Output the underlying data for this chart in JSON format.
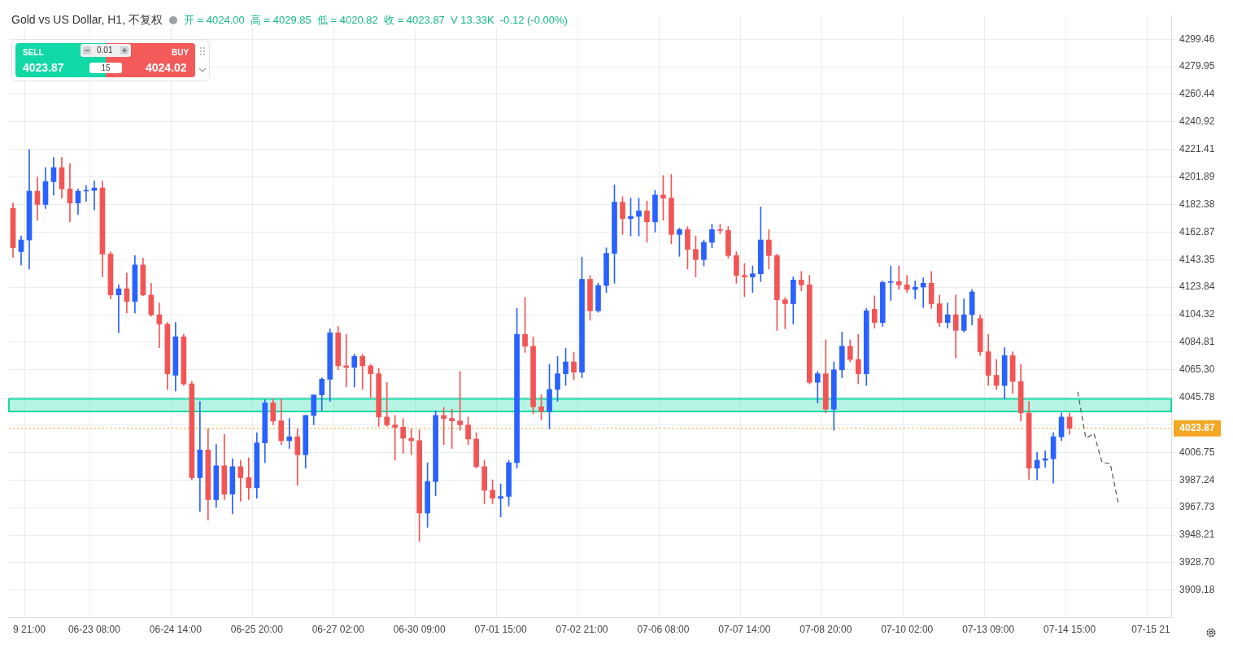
{
  "chart_data": {
    "type": "candlestick",
    "title": "Gold vs US Dollar, H1, 不复权",
    "subtitle": "开 = 4024.00  高 = 4029.85  低 = 4020.82  收 = 4023.87  V 13.33K  -0.12 (-0.00%)",
    "categories": [
      null,
      null,
      "9 21:00",
      null,
      null,
      null,
      null,
      null,
      null,
      null,
      "06-23 08:00",
      null,
      null,
      null,
      null,
      null,
      null,
      null,
      null,
      null,
      "06-24 14:00",
      null,
      null,
      null,
      null,
      null,
      null,
      null,
      null,
      null,
      "06-25 20:00",
      null,
      null,
      null,
      null,
      null,
      null,
      null,
      null,
      null,
      "06-27 02:00",
      null,
      null,
      null,
      null,
      null,
      null,
      null,
      null,
      null,
      "06-30 09:00",
      null,
      null,
      null,
      null,
      null,
      null,
      null,
      null,
      null,
      "07-01 15:00",
      null,
      null,
      null,
      null,
      null,
      null,
      null,
      null,
      null,
      "07-02 21:00",
      null,
      null,
      null,
      null,
      null,
      null,
      null,
      null,
      null,
      "07-06 08:00",
      null,
      null,
      null,
      null,
      null,
      null,
      null,
      null,
      null,
      "07-07 14:00",
      null,
      null,
      null,
      null,
      null,
      null,
      null,
      null,
      null,
      "07-08 20:00",
      null,
      null,
      null,
      null,
      null,
      null,
      null,
      null,
      null,
      "07-10 02:00",
      null,
      null,
      null,
      null,
      null,
      null,
      null,
      null,
      null,
      "07-13 09:00",
      null,
      null,
      null,
      null,
      null,
      null,
      null,
      null,
      null,
      "07-14 15:00",
      null,
      null,
      null,
      null,
      null,
      null,
      null,
      null,
      null,
      "07-15 21",
      null,
      null
    ],
    "ohlc": [
      [
        4179.6,
        4183.5,
        4145.0,
        4151.7
      ],
      [
        4149.0,
        4160.1,
        4139.5,
        4157.3
      ],
      [
        4157.3,
        4221.4,
        4136.7,
        4191.9
      ],
      [
        4191.9,
        4201.9,
        4171.2,
        4182.4
      ],
      [
        4182.4,
        4208.6,
        4179.6,
        4198.6
      ],
      [
        4198.6,
        4215.8,
        4189.1,
        4208.6
      ],
      [
        4208.6,
        4215.8,
        4186.9,
        4193.5
      ],
      [
        4193.5,
        4211.4,
        4170.1,
        4183.5
      ],
      [
        4183.5,
        4193.5,
        4175.2,
        4191.9
      ],
      [
        4191.9,
        4195.8,
        4184.6,
        4192.4
      ],
      [
        4192.4,
        4199.1,
        4178.5,
        4194.1
      ],
      [
        4194.1,
        4199.1,
        4131.1,
        4147.3
      ],
      [
        4147.3,
        4149.0,
        4115.5,
        4118.3
      ],
      [
        4118.3,
        4125.5,
        4091.5,
        4122.7
      ],
      [
        4122.7,
        4133.9,
        4105.5,
        4113.8
      ],
      [
        4113.8,
        4146.2,
        4105.5,
        4139.5
      ],
      [
        4139.5,
        4144.5,
        4117.7,
        4118.3
      ],
      [
        4118.3,
        4126.6,
        4103.2,
        4104.3
      ],
      [
        4104.3,
        4112.7,
        4080.9,
        4097.7
      ],
      [
        4097.7,
        4098.8,
        4051.4,
        4062.5
      ],
      [
        4061.4,
        4098.8,
        4050.3,
        4088.7
      ],
      [
        4088.7,
        4090.4,
        4054.2,
        4055.3
      ],
      [
        4055.3,
        4057.0,
        3987.3,
        3988.9
      ],
      [
        3988.9,
        4043.0,
        3965.0,
        4008.5
      ],
      [
        4008.5,
        4023.5,
        3958.8,
        3973.3
      ],
      [
        3973.3,
        4012.4,
        3967.8,
        3997.3
      ],
      [
        3997.3,
        4019.6,
        3973.3,
        3977.2
      ],
      [
        3977.2,
        4002.3,
        3963.3,
        3996.7
      ],
      [
        3996.7,
        4001.2,
        3972.2,
        3988.9
      ],
      [
        3988.9,
        4002.9,
        3973.3,
        3981.7
      ],
      [
        3981.7,
        4020.7,
        3974.4,
        4013.5
      ],
      [
        4013.5,
        4044.1,
        3999.5,
        4041.9
      ],
      [
        4041.9,
        4044.7,
        4026.3,
        4029.1
      ],
      [
        4029.1,
        4044.7,
        4012.4,
        4015.1
      ],
      [
        4015.1,
        4030.8,
        4009.6,
        4017.9
      ],
      [
        4017.9,
        4023.5,
        3983.4,
        4005.1
      ],
      [
        4005.1,
        4033.0,
        3995.6,
        4033.0
      ],
      [
        4033.0,
        4047.5,
        4026.3,
        4047.5
      ],
      [
        4047.5,
        4059.7,
        4036.3,
        4058.6
      ],
      [
        4058.6,
        4094.3,
        4043.0,
        4091.5
      ],
      [
        4091.5,
        4096.0,
        4065.3,
        4068.1
      ],
      [
        4068.1,
        4090.4,
        4053.1,
        4067.0
      ],
      [
        4067.0,
        4076.5,
        4053.1,
        4074.8
      ],
      [
        4074.8,
        4076.5,
        4051.4,
        4068.1
      ],
      [
        4068.1,
        4069.2,
        4045.8,
        4062.5
      ],
      [
        4062.5,
        4066.4,
        4025.2,
        4031.9
      ],
      [
        4031.9,
        4056.4,
        4025.2,
        4026.3
      ],
      [
        4026.3,
        4033.0,
        4001.2,
        4024.6
      ],
      [
        4024.6,
        4030.8,
        4006.2,
        4016.8
      ],
      [
        4016.8,
        4023.5,
        4005.1,
        4015.1
      ],
      [
        4015.1,
        4022.9,
        3943.8,
        3963.8
      ],
      [
        3963.8,
        3999.5,
        3953.8,
        3986.2
      ],
      [
        3986.2,
        4036.3,
        3976.1,
        4033.0
      ],
      [
        4033.0,
        4038.6,
        4012.4,
        4030.8
      ],
      [
        4030.8,
        4037.4,
        4009.6,
        4029.1
      ],
      [
        4029.1,
        4064.2,
        4022.4,
        4026.3
      ],
      [
        4026.3,
        4031.9,
        4012.4,
        4016.3
      ],
      [
        4016.3,
        4020.7,
        3995.6,
        3996.7
      ],
      [
        3996.7,
        4001.2,
        3970.5,
        3980.0
      ],
      [
        3980.0,
        3987.3,
        3970.5,
        3974.4
      ],
      [
        3974.4,
        3984.5,
        3961.1,
        3975.6
      ],
      [
        3975.6,
        4001.2,
        3968.9,
        3999.5
      ],
      [
        3999.5,
        4108.8,
        3995.6,
        4090.4
      ],
      [
        4090.4,
        4116.6,
        4077.6,
        4082.0
      ],
      [
        4082.0,
        4088.7,
        4034.1,
        4039.1
      ],
      [
        4039.1,
        4047.5,
        4029.6,
        4035.8
      ],
      [
        4035.8,
        4069.2,
        4023.5,
        4051.4
      ],
      [
        4051.4,
        4074.8,
        4043.0,
        4062.5
      ],
      [
        4062.5,
        4080.4,
        4054.2,
        4070.9
      ],
      [
        4070.9,
        4077.6,
        4058.1,
        4063.6
      ],
      [
        4063.6,
        4145.0,
        4059.7,
        4129.4
      ],
      [
        4129.4,
        4132.2,
        4100.4,
        4107.1
      ],
      [
        4107.1,
        4126.6,
        4106.0,
        4125.0
      ],
      [
        4125.0,
        4151.7,
        4120.0,
        4147.8
      ],
      [
        4147.8,
        4196.3,
        4126.6,
        4184.1
      ],
      [
        4184.1,
        4188.0,
        4161.2,
        4172.4
      ],
      [
        4172.4,
        4186.9,
        4160.1,
        4174.0
      ],
      [
        4174.0,
        4186.9,
        4160.1,
        4177.9
      ],
      [
        4177.9,
        4184.6,
        4155.6,
        4170.1
      ],
      [
        4170.1,
        4192.4,
        4162.9,
        4189.1
      ],
      [
        4189.1,
        4203.0,
        4171.2,
        4186.9
      ],
      [
        4186.9,
        4203.6,
        4154.5,
        4161.2
      ],
      [
        4161.2,
        4165.7,
        4145.6,
        4164.6
      ],
      [
        4164.6,
        4166.8,
        4136.7,
        4150.6
      ],
      [
        4150.6,
        4160.1,
        4131.1,
        4143.4
      ],
      [
        4143.4,
        4157.3,
        4138.9,
        4155.6
      ],
      [
        4155.6,
        4168.5,
        4151.7,
        4164.6
      ],
      [
        4164.6,
        4168.5,
        4161.8,
        4164.0
      ],
      [
        4164.0,
        4166.8,
        4144.5,
        4146.2
      ],
      [
        4146.2,
        4149.0,
        4126.6,
        4132.2
      ],
      [
        4132.2,
        4140.6,
        4117.2,
        4131.1
      ],
      [
        4131.1,
        4138.9,
        4120.0,
        4133.3
      ],
      [
        4133.3,
        4180.7,
        4127.8,
        4157.3
      ],
      [
        4157.3,
        4164.6,
        4136.7,
        4146.2
      ],
      [
        4146.2,
        4147.3,
        4093.2,
        4114.9
      ],
      [
        4114.9,
        4116.6,
        4094.3,
        4112.1
      ],
      [
        4112.1,
        4131.1,
        4097.7,
        4128.9
      ],
      [
        4128.9,
        4135.0,
        4121.1,
        4125.5
      ],
      [
        4125.5,
        4132.2,
        4055.3,
        4056.4
      ],
      [
        4056.4,
        4064.2,
        4041.9,
        4062.5
      ],
      [
        4062.5,
        4086.5,
        4034.7,
        4037.4
      ],
      [
        4037.4,
        4070.9,
        4022.4,
        4065.3
      ],
      [
        4065.3,
        4092.1,
        4059.7,
        4082.0
      ],
      [
        4082.0,
        4086.5,
        4070.9,
        4072.6
      ],
      [
        4072.6,
        4090.4,
        4055.3,
        4062.5
      ],
      [
        4062.5,
        4108.8,
        4054.2,
        4107.1
      ],
      [
        4108.2,
        4117.7,
        4094.9,
        4098.8
      ],
      [
        4098.8,
        4128.3,
        4096.0,
        4127.2
      ],
      [
        4127.2,
        4138.9,
        4114.4,
        4127.8
      ],
      [
        4127.8,
        4138.9,
        4122.2,
        4125.5
      ],
      [
        4125.5,
        4132.2,
        4120.0,
        4122.2
      ],
      [
        4122.2,
        4128.3,
        4115.5,
        4123.9
      ],
      [
        4123.9,
        4130.5,
        4109.4,
        4126.6
      ],
      [
        4126.6,
        4135.0,
        4108.8,
        4112.1
      ],
      [
        4112.1,
        4118.3,
        4096.0,
        4098.8
      ],
      [
        4098.8,
        4112.7,
        4094.9,
        4104.3
      ],
      [
        4104.3,
        4118.3,
        4073.7,
        4093.2
      ],
      [
        4093.2,
        4115.5,
        4092.1,
        4104.3
      ],
      [
        4104.3,
        4122.2,
        4097.1,
        4120.5
      ],
      [
        4101.6,
        4104.3,
        4075.4,
        4078.1
      ],
      [
        4078.1,
        4090.4,
        4054.2,
        4061.4
      ],
      [
        4061.4,
        4072.6,
        4051.4,
        4054.2
      ],
      [
        4054.2,
        4080.9,
        4044.7,
        4075.4
      ],
      [
        4075.4,
        4078.1,
        4048.6,
        4057.0
      ],
      [
        4057.0,
        4069.2,
        4029.1,
        4034.7
      ],
      [
        4034.7,
        4043.0,
        3987.8,
        3995.6
      ],
      [
        3995.6,
        4006.8,
        3987.3,
        4001.2
      ],
      [
        4001.2,
        4007.9,
        3996.2,
        4002.3
      ],
      [
        4002.3,
        4020.7,
        3985.0,
        4017.9
      ],
      [
        4017.9,
        4034.7,
        4015.1,
        4031.9
      ],
      [
        4031.9,
        4034.7,
        4019.6,
        4023.87
      ],
      null,
      null,
      null,
      null,
      null,
      null,
      null,
      null,
      null,
      null,
      null,
      null
    ],
    "colors": [
      "#f25555",
      "#2962ff",
      "#2962ff",
      "#f25555",
      "#2962ff",
      "#2962ff",
      "#f25555",
      "#f25555",
      "#2962ff",
      "#2962ff",
      "#2962ff",
      "#f25555",
      "#f25555",
      "#2962ff",
      "#f25555",
      "#2962ff",
      "#f25555",
      "#f25555",
      "#f25555",
      "#f25555",
      "#2962ff",
      "#f25555",
      "#f25555",
      "#2962ff",
      "#f25555",
      "#2962ff",
      "#f25555",
      "#2962ff",
      "#f25555",
      "#f25555",
      "#2962ff",
      "#2962ff",
      "#f25555",
      "#f25555",
      "#2962ff",
      "#f25555",
      "#2962ff",
      "#2962ff",
      "#2962ff",
      "#2962ff",
      "#f25555",
      "#f25555",
      "#2962ff",
      "#f25555",
      "#f25555",
      "#f25555",
      "#f25555",
      "#f25555",
      "#f25555",
      "#f25555",
      "#f25555",
      "#2962ff",
      "#2962ff",
      "#f25555",
      "#f25555",
      "#f25555",
      "#f25555",
      "#f25555",
      "#f25555",
      "#f25555",
      "#2962ff",
      "#2962ff",
      "#2962ff",
      "#f25555",
      "#f25555",
      "#f25555",
      "#2962ff",
      "#2962ff",
      "#2962ff",
      "#f25555",
      "#2962ff",
      "#f25555",
      "#2962ff",
      "#2962ff",
      "#2962ff",
      "#f25555",
      "#2962ff",
      "#2962ff",
      "#f25555",
      "#2962ff",
      "#f25555",
      "#f25555",
      "#2962ff",
      "#f25555",
      "#f25555",
      "#2962ff",
      "#2962ff",
      "#f25555",
      "#f25555",
      "#f25555",
      "#f25555",
      "#2962ff",
      "#2962ff",
      "#f25555",
      "#f25555",
      "#f25555",
      "#2962ff",
      "#f25555",
      "#f25555",
      "#2962ff",
      "#f25555",
      "#2962ff",
      "#2962ff",
      "#f25555",
      "#f25555",
      "#2962ff",
      "#f25555",
      "#2962ff",
      "#2962ff",
      "#f25555",
      "#f25555",
      "#2962ff",
      "#2962ff",
      "#f25555",
      "#f25555",
      "#2962ff",
      "#f25555",
      "#2962ff",
      "#2962ff",
      "#f25555",
      "#f25555",
      "#f25555",
      "#2962ff",
      "#f25555",
      "#f25555",
      "#f25555",
      "#2962ff",
      "#2962ff",
      "#2962ff",
      "#2962ff",
      "#f25555",
      null,
      null,
      null,
      null,
      null,
      null,
      null,
      null,
      null,
      null,
      null,
      null
    ],
    "series": [
      {
        "type": "line",
        "color": "#555555",
        "line_style": "dashed",
        "marker": "none",
        "values": [
          null,
          null,
          null,
          null,
          null,
          null,
          null,
          null,
          null,
          null,
          null,
          null,
          null,
          null,
          null,
          null,
          null,
          null,
          null,
          null,
          null,
          null,
          null,
          null,
          null,
          null,
          null,
          null,
          null,
          null,
          null,
          null,
          null,
          null,
          null,
          null,
          null,
          null,
          null,
          null,
          null,
          null,
          null,
          null,
          null,
          null,
          null,
          null,
          null,
          null,
          null,
          null,
          null,
          null,
          null,
          null,
          null,
          null,
          null,
          null,
          null,
          null,
          null,
          null,
          null,
          null,
          null,
          null,
          null,
          null,
          null,
          null,
          null,
          null,
          null,
          null,
          null,
          null,
          null,
          null,
          null,
          null,
          null,
          null,
          null,
          null,
          null,
          null,
          null,
          null,
          null,
          null,
          null,
          null,
          null,
          null,
          null,
          null,
          null,
          null,
          null,
          null,
          null,
          null,
          null,
          null,
          null,
          null,
          null,
          null,
          null,
          null,
          null,
          null,
          null,
          null,
          null,
          null,
          null,
          null,
          null,
          null,
          null,
          null,
          null,
          null,
          null,
          null,
          null,
          null,
          null,
          4049.7,
          4016.8,
          4020.2,
          3999.5,
          3999.0,
          3970.5,
          null,
          null,
          null,
          null,
          null,
          null
        ]
      }
    ],
    "ylim": [
      3889.7,
      4316.2
    ],
    "yticks": [
      4299.46,
      4279.95,
      4260.44,
      4240.92,
      4221.41,
      4201.89,
      4182.38,
      4162.87,
      4143.35,
      4123.84,
      4104.32,
      4084.81,
      {
        "value": 4065.3,
        "label": "4065.30"
      },
      4045.78,
      {
        "value": 4026.27,
        "label": null
      },
      4006.75,
      3987.24,
      3967.73,
      3948.21,
      {
        "value": 3928.7,
        "label": "3928.70"
      },
      3909.18
    ],
    "ref_lines": [
      {
        "axis": "y",
        "value": 4023.87,
        "label": "4023.87",
        "color": "#f5a623",
        "line_style": "dotted"
      }
    ],
    "bands": [
      {
        "axis": "y",
        "from": 4035.8,
        "to": 4044.7,
        "color": "#14d9a4"
      }
    ],
    "annotations": [
      "SELL",
      "4023.87",
      "0.01",
      "15",
      "BUY",
      "4024.02"
    ],
    "grid": true,
    "legend": false
  }
}
